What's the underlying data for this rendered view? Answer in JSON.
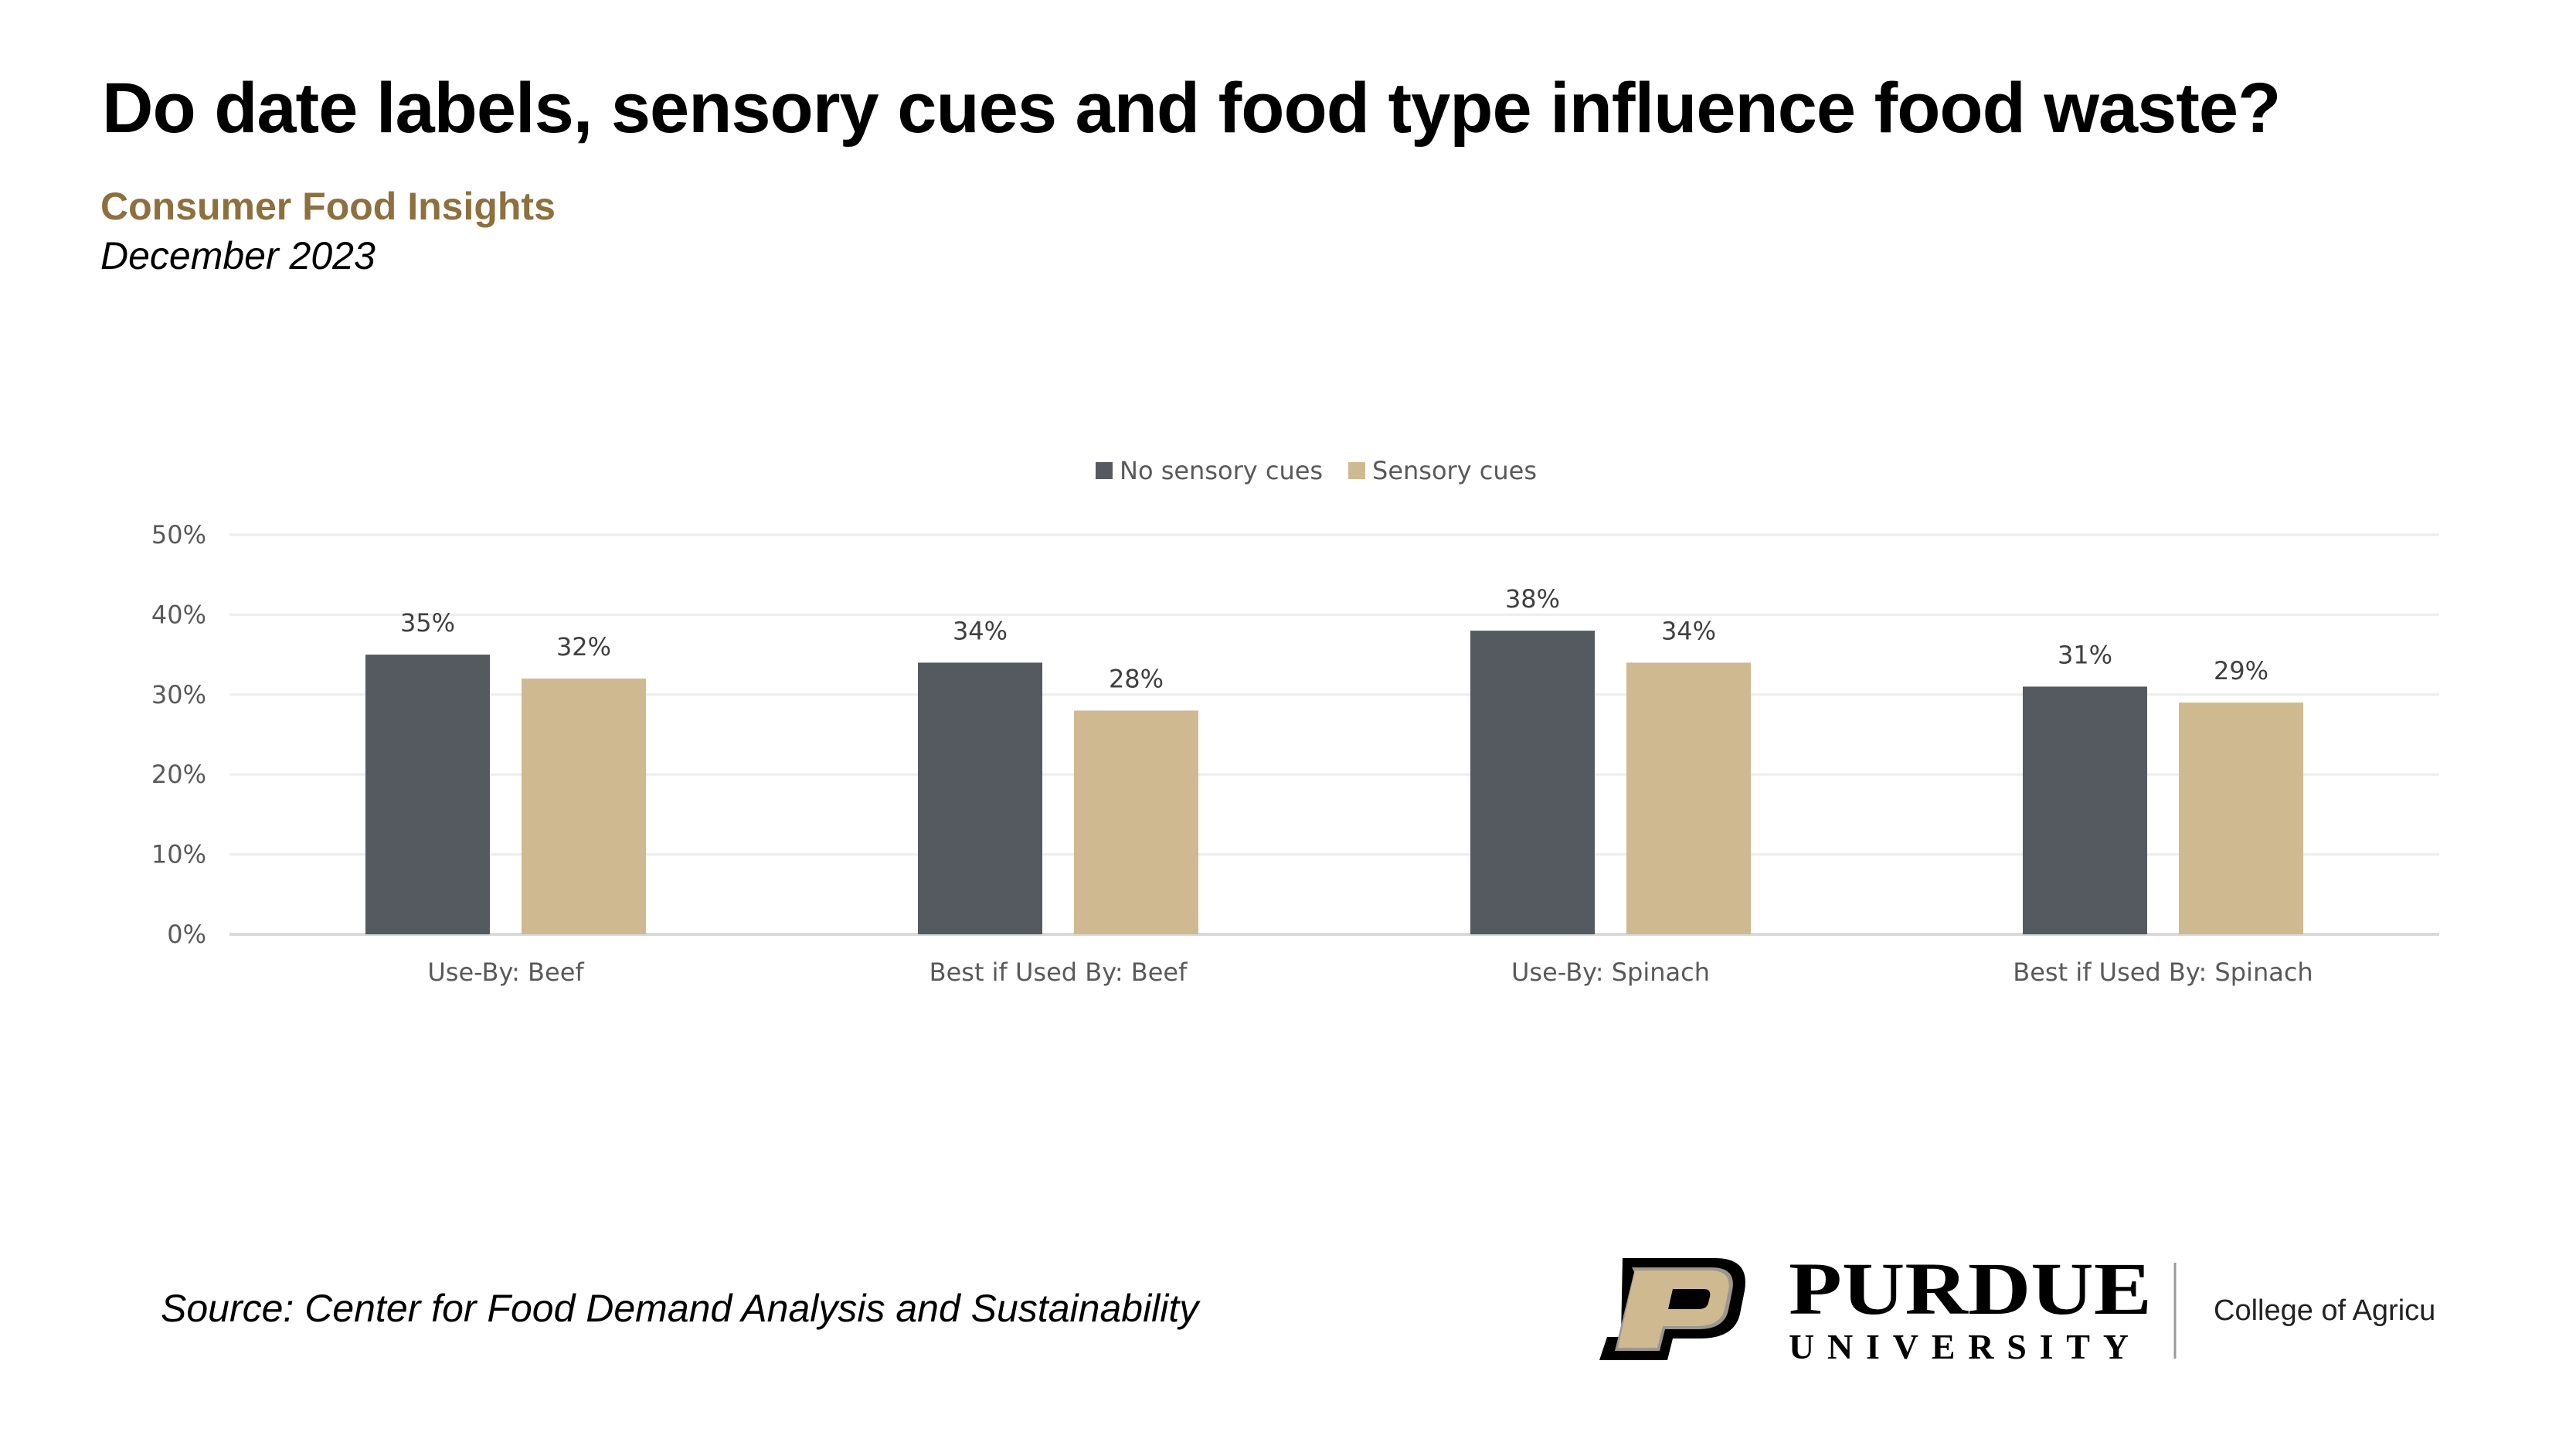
{
  "header": {
    "title": "Do date labels, sensory cues and food type influence food waste?",
    "subtitle": "Consumer Food Insights",
    "date": "December 2023"
  },
  "footer": {
    "source": "Source:  Center for Food Demand Analysis and Sustainability",
    "logo_text": "PURDUE UNIVERSITY",
    "college": "College of Agriculture"
  },
  "chart_data": {
    "type": "bar",
    "categories": [
      "Use-By: Beef",
      "Best if Used By: Beef",
      "Use-By: Spinach",
      "Best if Used By: Spinach"
    ],
    "series": [
      {
        "name": "No sensory cues",
        "values": [
          35,
          34,
          38,
          31
        ],
        "labels": [
          "35%",
          "34%",
          "38%",
          "31%"
        ],
        "color": "#555960"
      },
      {
        "name": "Sensory cues",
        "values": [
          32,
          28,
          34,
          29
        ],
        "labels": [
          "32%",
          "28%",
          "34%",
          "29%"
        ],
        "color": "#CFB991"
      }
    ],
    "ylim": [
      0,
      50
    ],
    "yticks": [
      0,
      10,
      20,
      30,
      40,
      50
    ],
    "ytick_labels": [
      "0%",
      "10%",
      "20%",
      "30%",
      "40%",
      "50%"
    ],
    "legend_position": "top-center",
    "grid": true,
    "title": "",
    "xlabel": "",
    "ylabel": ""
  }
}
